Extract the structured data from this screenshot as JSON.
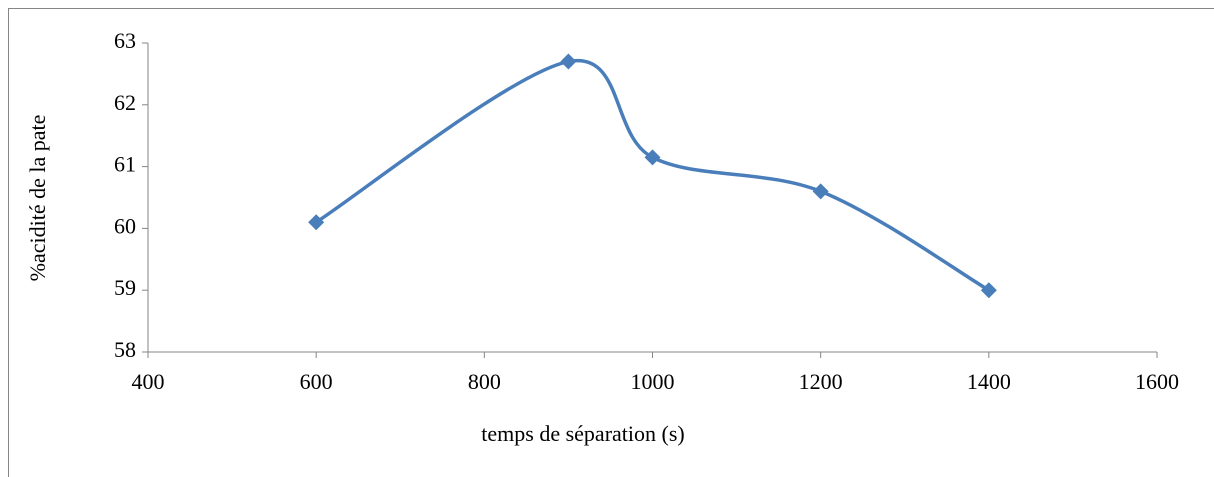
{
  "chart_data": {
    "type": "line",
    "x": [
      600,
      900,
      1000,
      1200,
      1400
    ],
    "values": [
      60.1,
      62.7,
      61.15,
      60.6,
      59.0
    ],
    "color": "#4a7ebb",
    "xlabel": "temps de séparation (s)",
    "ylabel": "%acidité de la pate",
    "xlim": [
      400,
      1600
    ],
    "xticks": [
      400,
      600,
      800,
      1000,
      1200,
      1400,
      1600
    ],
    "ylim": [
      58,
      63
    ],
    "yticks": [
      58,
      59,
      60,
      61,
      62,
      63
    ],
    "smooth": true,
    "marker": "diamond"
  }
}
